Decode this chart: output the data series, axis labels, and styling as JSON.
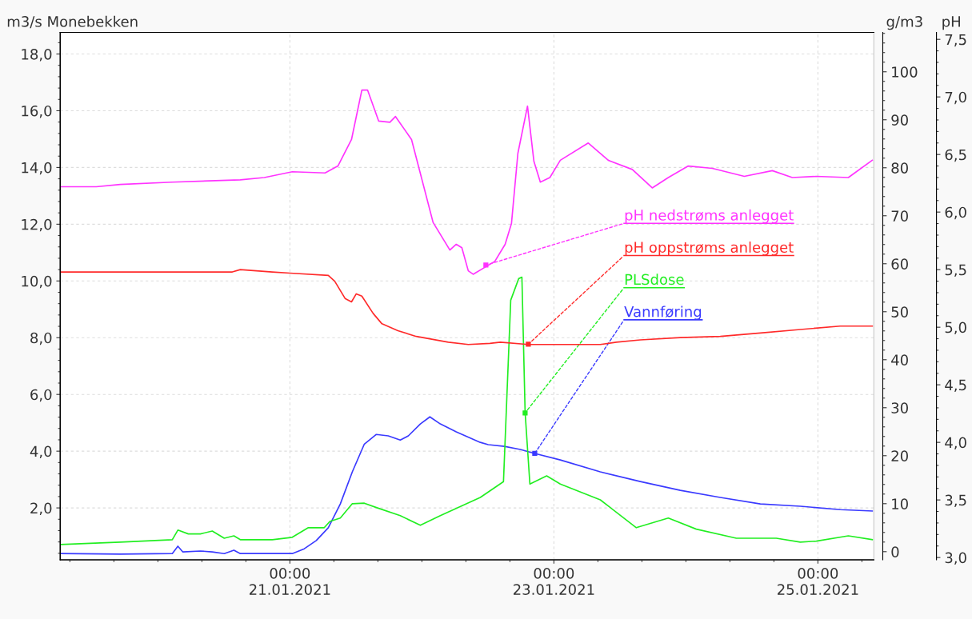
{
  "chart_data": {
    "type": "line",
    "ylabel": "m3/s Monebekken",
    "y2label": "g/m3",
    "y3label": "pH",
    "xlim": [
      "2021-01-19T06:15",
      "2021-01-25T10:10"
    ],
    "xticks": [
      {
        "value": "2021-01-21T00:00",
        "label": "00:00\n21.01.2021"
      },
      {
        "value": "2021-01-23T00:00",
        "label": "00:00\n23.01.2021"
      },
      {
        "value": "2021-01-25T00:00",
        "label": "00:00\n25.01.2021"
      }
    ],
    "ylim": [
      0.17,
      18.76
    ],
    "yticks": [
      {
        "value": 2,
        "label": "2,0"
      },
      {
        "value": 4,
        "label": "4,0"
      },
      {
        "value": 6,
        "label": "6,0"
      },
      {
        "value": 8,
        "label": "8,0"
      },
      {
        "value": 10,
        "label": "10,0"
      },
      {
        "value": 12,
        "label": "12,0"
      },
      {
        "value": 14,
        "label": "14,0"
      },
      {
        "value": 16,
        "label": "16,0"
      },
      {
        "value": 18,
        "label": "18,0"
      }
    ],
    "y2lim": [
      -1.7,
      108.2
    ],
    "y2ticks": [
      0,
      10,
      20,
      30,
      40,
      50,
      60,
      70,
      80,
      90,
      100
    ],
    "y3lim": [
      2.98,
      7.56
    ],
    "y3ticks": [
      {
        "value": 3,
        "label": "3,0"
      },
      {
        "value": 3.5,
        "label": "3,5"
      },
      {
        "value": 4,
        "label": "4,0"
      },
      {
        "value": 4.5,
        "label": "4,5"
      },
      {
        "value": 5,
        "label": "5,0"
      },
      {
        "value": 5.5,
        "label": "5,5"
      },
      {
        "value": 6,
        "label": "6,0"
      },
      {
        "value": 6.5,
        "label": "6,5"
      },
      {
        "value": 7,
        "label": "7,0"
      },
      {
        "value": 7.5,
        "label": "7,5"
      }
    ],
    "grid": true,
    "line_style": "solid",
    "series": [
      {
        "color": "#ff33ff",
        "axis": "y3",
        "x": [
          "2021-01-19T06:15",
          "2021-01-19T12:48",
          "2021-01-19T17:10",
          "2021-01-20T02:37",
          "2021-01-20T14:59",
          "2021-01-20T19:21",
          "2021-01-21T00:26",
          "2021-01-21T06:24",
          "2021-01-21T08:44",
          "2021-01-21T11:12",
          "2021-01-21T13:05",
          "2021-01-21T14:07",
          "2021-01-21T16:09",
          "2021-01-21T18:11",
          "2021-01-21T19:12",
          "2021-01-21T22:07",
          "2021-01-22T02:02",
          "2021-01-22T05:05",
          "2021-01-22T06:15",
          "2021-01-22T07:16",
          "2021-01-22T08:26",
          "2021-01-22T09:19",
          "2021-01-22T11:47",
          "2021-01-22T13:14",
          "2021-01-22T15:08",
          "2021-01-22T16:17",
          "2021-01-22T17:27",
          "2021-01-22T19:12",
          "2021-01-22T20:22",
          "2021-01-22T21:32",
          "2021-01-22T23:16",
          "2021-01-23T01:10",
          "2021-01-23T06:15",
          "2021-01-23T09:53",
          "2021-01-23T14:15",
          "2021-01-23T17:53",
          "2021-01-23T20:48",
          "2021-01-24T00:26",
          "2021-01-24T04:48",
          "2021-01-24T10:37",
          "2021-01-24T15:43",
          "2021-01-24T19:21",
          "2021-01-24T23:43",
          "2021-01-25T05:32",
          "2021-01-25T09:53"
        ],
        "values": [
          6.22,
          6.22,
          6.24,
          6.26,
          6.28,
          6.3,
          6.35,
          6.34,
          6.4,
          6.63,
          7.06,
          7.06,
          6.79,
          6.78,
          6.83,
          6.63,
          5.91,
          5.67,
          5.72,
          5.69,
          5.49,
          5.46,
          5.53,
          5.57,
          5.72,
          5.9,
          6.51,
          6.92,
          6.44,
          6.26,
          6.3,
          6.45,
          6.6,
          6.45,
          6.37,
          6.21,
          6.3,
          6.4,
          6.38,
          6.31,
          6.36,
          6.3,
          6.31,
          6.3,
          6.45
        ]
      },
      {
        "color": "#ff2a2a",
        "axis": "y3",
        "x": [
          "2021-01-19T06:15",
          "2021-01-20T00:26",
          "2021-01-20T13:32",
          "2021-01-20T14:59",
          "2021-01-20T20:48",
          "2021-01-21T00:00",
          "2021-01-21T06:59",
          "2021-01-21T08:09",
          "2021-01-21T10:02",
          "2021-01-21T11:12",
          "2021-01-21T12:04",
          "2021-01-21T13:05",
          "2021-01-21T15:08",
          "2021-01-21T16:44",
          "2021-01-21T19:38",
          "2021-01-21T22:59",
          "2021-01-22T04:48",
          "2021-01-22T08:26",
          "2021-01-22T12:22",
          "2021-01-22T14:15",
          "2021-01-22T19:21",
          "2021-01-23T04:04",
          "2021-01-23T08:26",
          "2021-01-23T11:21",
          "2021-01-23T15:43",
          "2021-01-23T22:59",
          "2021-01-24T06:15",
          "2021-01-24T13:32",
          "2021-01-24T20:48",
          "2021-01-25T04:04",
          "2021-01-25T09:53"
        ],
        "values": [
          5.48,
          5.48,
          5.48,
          5.5,
          5.48,
          5.47,
          5.45,
          5.4,
          5.25,
          5.22,
          5.29,
          5.27,
          5.12,
          5.03,
          4.97,
          4.92,
          4.87,
          4.85,
          4.86,
          4.87,
          4.85,
          4.85,
          4.85,
          4.87,
          4.89,
          4.91,
          4.92,
          4.95,
          4.98,
          5.01,
          5.01
        ]
      },
      {
        "color": "#22ee22",
        "axis": "y2",
        "x": [
          "2021-01-19T06:15",
          "2021-01-19T17:10",
          "2021-01-20T02:37",
          "2021-01-20T03:38",
          "2021-01-20T05:32",
          "2021-01-20T07:43",
          "2021-01-20T09:53",
          "2021-01-20T12:04",
          "2021-01-20T13:49",
          "2021-01-20T14:59",
          "2021-01-20T20:48",
          "2021-01-21T00:26",
          "2021-01-21T03:21",
          "2021-01-21T06:15",
          "2021-01-21T07:16",
          "2021-01-21T09:10",
          "2021-01-21T11:21",
          "2021-01-21T13:32",
          "2021-01-21T15:43",
          "2021-01-21T20:04",
          "2021-01-21T23:43",
          "2021-01-22T03:21",
          "2021-01-22T10:37",
          "2021-01-22T14:50",
          "2021-01-22T16:09",
          "2021-01-22T17:36",
          "2021-01-22T18:11",
          "2021-01-22T18:46",
          "2021-01-22T19:38",
          "2021-01-22T22:41",
          "2021-01-23T01:10",
          "2021-01-23T08:26",
          "2021-01-23T14:59",
          "2021-01-23T20:48",
          "2021-01-24T01:53",
          "2021-01-24T09:10",
          "2021-01-24T16:26",
          "2021-01-24T20:48",
          "2021-01-24T23:43",
          "2021-01-25T05:32",
          "2021-01-25T09:53"
        ],
        "values": [
          1.5,
          2.0,
          2.5,
          4.5,
          3.7,
          3.7,
          4.3,
          2.8,
          3.3,
          2.5,
          2.5,
          3.0,
          5.0,
          5.0,
          6.3,
          7.0,
          10.0,
          10.1,
          9.2,
          7.5,
          5.5,
          7.5,
          11.3,
          14.6,
          52.4,
          56.9,
          57.2,
          29.0,
          14.1,
          15.8,
          14.1,
          10.8,
          5.0,
          7.0,
          4.7,
          2.8,
          2.8,
          2.0,
          2.2,
          3.3,
          2.5
        ]
      },
      {
        "color": "#3a3aff",
        "axis": "y",
        "x": [
          "2021-01-19T06:15",
          "2021-01-19T17:10",
          "2021-01-20T02:37",
          "2021-01-20T03:38",
          "2021-01-20T04:31",
          "2021-01-20T07:43",
          "2021-01-20T09:53",
          "2021-01-20T12:04",
          "2021-01-20T13:49",
          "2021-01-20T14:59",
          "2021-01-21T00:26",
          "2021-01-21T02:37",
          "2021-01-21T04:48",
          "2021-01-21T06:59",
          "2021-01-21T09:10",
          "2021-01-21T11:21",
          "2021-01-21T13:32",
          "2021-01-21T15:43",
          "2021-01-21T17:53",
          "2021-01-21T20:04",
          "2021-01-21T21:32",
          "2021-01-21T23:43",
          "2021-01-22T01:27",
          "2021-01-22T03:21",
          "2021-01-22T06:15",
          "2021-01-22T10:37",
          "2021-01-22T12:04",
          "2021-01-22T14:59",
          "2021-01-22T17:53",
          "2021-01-22T20:31",
          "2021-01-23T01:10",
          "2021-01-23T08:26",
          "2021-01-23T15:43",
          "2021-01-23T22:59",
          "2021-01-24T06:15",
          "2021-01-24T13:32",
          "2021-01-24T20:48",
          "2021-01-25T04:04",
          "2021-01-25T09:53"
        ],
        "values": [
          0.39,
          0.37,
          0.39,
          0.65,
          0.45,
          0.48,
          0.45,
          0.39,
          0.51,
          0.39,
          0.39,
          0.56,
          0.85,
          1.3,
          2.14,
          3.27,
          4.25,
          4.59,
          4.54,
          4.39,
          4.54,
          4.96,
          5.21,
          4.96,
          4.68,
          4.31,
          4.23,
          4.17,
          4.06,
          3.92,
          3.69,
          3.27,
          2.93,
          2.62,
          2.37,
          2.14,
          2.06,
          1.94,
          1.89
        ]
      }
    ],
    "annotations": [
      {
        "text": "pH nedstrøms anlegget",
        "x": "2021-01-22T11:38",
        "y": 10.56
      },
      {
        "text": "pH oppstrøms anlegget",
        "x": "2021-01-22T19:21",
        "y": 7.77
      },
      {
        "text": "PLSdose",
        "x": "2021-01-22T18:46",
        "y": 5.35
      },
      {
        "text": "Vannføring",
        "x": "2021-01-22T20:31",
        "y": 3.92
      }
    ]
  }
}
